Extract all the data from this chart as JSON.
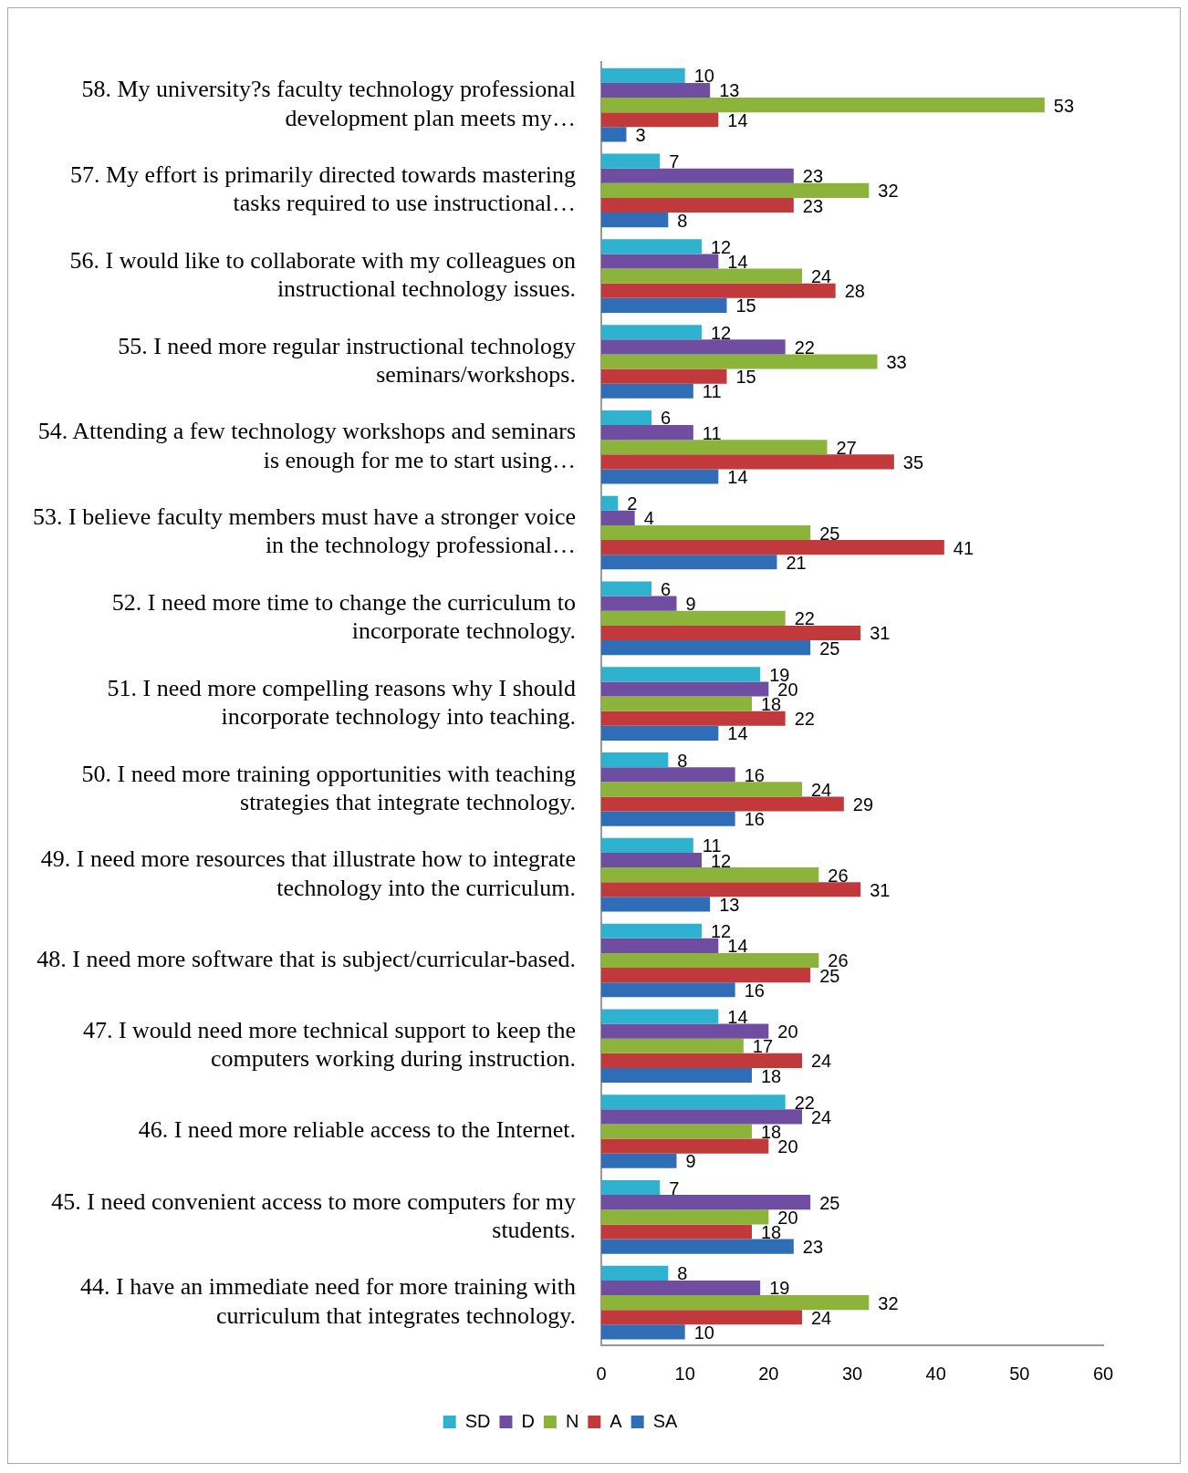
{
  "chart_data": {
    "type": "bar",
    "orientation": "horizontal",
    "categories": [
      "58. My university?s faculty technology professional development plan meets my…",
      "57. My effort is primarily directed towards mastering tasks required to use instructional…",
      "56. I would like to collaborate with my colleagues on instructional technology issues.",
      "55. I need more regular instructional technology seminars/workshops.",
      "54. Attending a few technology workshops and seminars is enough for me to start using…",
      "53. I believe faculty members must have a stronger voice in the technology professional…",
      "52. I need more time to change the curriculum to incorporate technology.",
      "51. I need more compelling reasons why I should incorporate technology into teaching.",
      "50. I need more training opportunities with teaching strategies that integrate technology.",
      "49. I need more resources that illustrate how to integrate technology into the curriculum.",
      "48. I need more software that is subject/curricular-based.",
      "47. I would need more technical support to keep the computers working during instruction.",
      "46. I need more reliable access to the Internet.",
      "45. I need convenient access to more computers for my students.",
      "44. I have an immediate need for more training with curriculum that integrates technology."
    ],
    "series": [
      {
        "name": "SD",
        "color": "#2fb1d0",
        "values": [
          10,
          7,
          12,
          12,
          6,
          2,
          6,
          19,
          8,
          11,
          12,
          14,
          22,
          7,
          8
        ]
      },
      {
        "name": "D",
        "color": "#6f4ea1",
        "values": [
          13,
          23,
          14,
          22,
          11,
          4,
          9,
          20,
          16,
          12,
          14,
          20,
          24,
          25,
          19
        ]
      },
      {
        "name": "N",
        "color": "#8cb43a",
        "values": [
          53,
          32,
          24,
          33,
          27,
          25,
          22,
          18,
          24,
          26,
          26,
          17,
          18,
          20,
          32
        ]
      },
      {
        "name": "A",
        "color": "#c1393b",
        "values": [
          14,
          23,
          28,
          15,
          35,
          41,
          31,
          22,
          29,
          31,
          25,
          24,
          20,
          18,
          24
        ]
      },
      {
        "name": "SA",
        "color": "#2f6eb7",
        "values": [
          3,
          8,
          15,
          11,
          14,
          21,
          25,
          14,
          16,
          13,
          16,
          18,
          9,
          23,
          10
        ]
      }
    ],
    "xlim": [
      0,
      60
    ],
    "xticks": [
      0,
      10,
      20,
      30,
      40,
      50,
      60
    ],
    "grid": false,
    "legend": "bottom",
    "data_labels": true
  }
}
